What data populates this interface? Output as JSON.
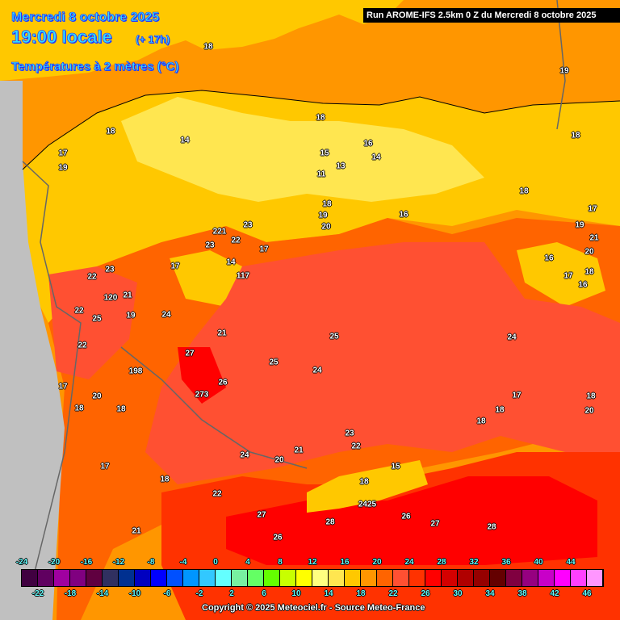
{
  "header": {
    "date": "Mercredi 8 octobre 2025",
    "time": "19:00 locale",
    "lead": "(+ 17h)",
    "variable": "Températures à 2 mètres (°C)",
    "run": "Run AROME-IFS 2.5km 0 Z du Mercredi 8 octobre 2025"
  },
  "colors": {
    "land_outside": "#c0c0c0",
    "text_accent": "#33ddff"
  },
  "labels": [
    "18",
    "19",
    "18",
    "14",
    "18",
    "17",
    "19",
    "16",
    "14",
    "15",
    "11",
    "13",
    "18",
    "16",
    "18",
    "19",
    "20",
    "18",
    "19",
    "17",
    "23",
    "221",
    "23",
    "22",
    "17",
    "17",
    "14",
    "117",
    "23",
    "22",
    "120",
    "21",
    "19",
    "24",
    "22",
    "25",
    "21",
    "27",
    "25",
    "24",
    "22",
    "17",
    "18",
    "198",
    "20",
    "18",
    "26",
    "273",
    "18",
    "24",
    "23",
    "22",
    "21",
    "20",
    "17",
    "16",
    "17",
    "18",
    "16",
    "21",
    "20",
    "17",
    "18",
    "18",
    "20",
    "18",
    "21",
    "22",
    "24",
    "26",
    "27",
    "26",
    "28",
    "27",
    "28",
    "25",
    "18",
    "15",
    "2425"
  ],
  "colorbar": {
    "top_ticks": [
      "-24",
      "-20",
      "-16",
      "-12",
      "-8",
      "-4",
      "0",
      "4",
      "8",
      "12",
      "16",
      "20",
      "24",
      "28",
      "32",
      "36",
      "40",
      "44"
    ],
    "bottom_ticks": [
      "-22",
      "-18",
      "-14",
      "-10",
      "-6",
      "-2",
      "2",
      "6",
      "10",
      "14",
      "18",
      "22",
      "26",
      "30",
      "34",
      "38",
      "42",
      "46"
    ],
    "colors": [
      "#400040",
      "#600060",
      "#a000a0",
      "#800080",
      "#600040",
      "#303060",
      "#003090",
      "#0000c0",
      "#0000ff",
      "#0050ff",
      "#0096ff",
      "#32c8ff",
      "#64ffff",
      "#78f0a0",
      "#64ff64",
      "#64ff00",
      "#c8ff00",
      "#ffff00",
      "#ffff80",
      "#ffe650",
      "#ffc800",
      "#ff9600",
      "#ff6400",
      "#ff5032",
      "#ff3200",
      "#ff0000",
      "#d40000",
      "#b00000",
      "#960000",
      "#640000",
      "#800040",
      "#960080",
      "#c800c8",
      "#ff00ff",
      "#ff40ff",
      "#ff96ff"
    ]
  },
  "copyright": "Copyright © 2025 Meteociel.fr - Source Meteo-France"
}
